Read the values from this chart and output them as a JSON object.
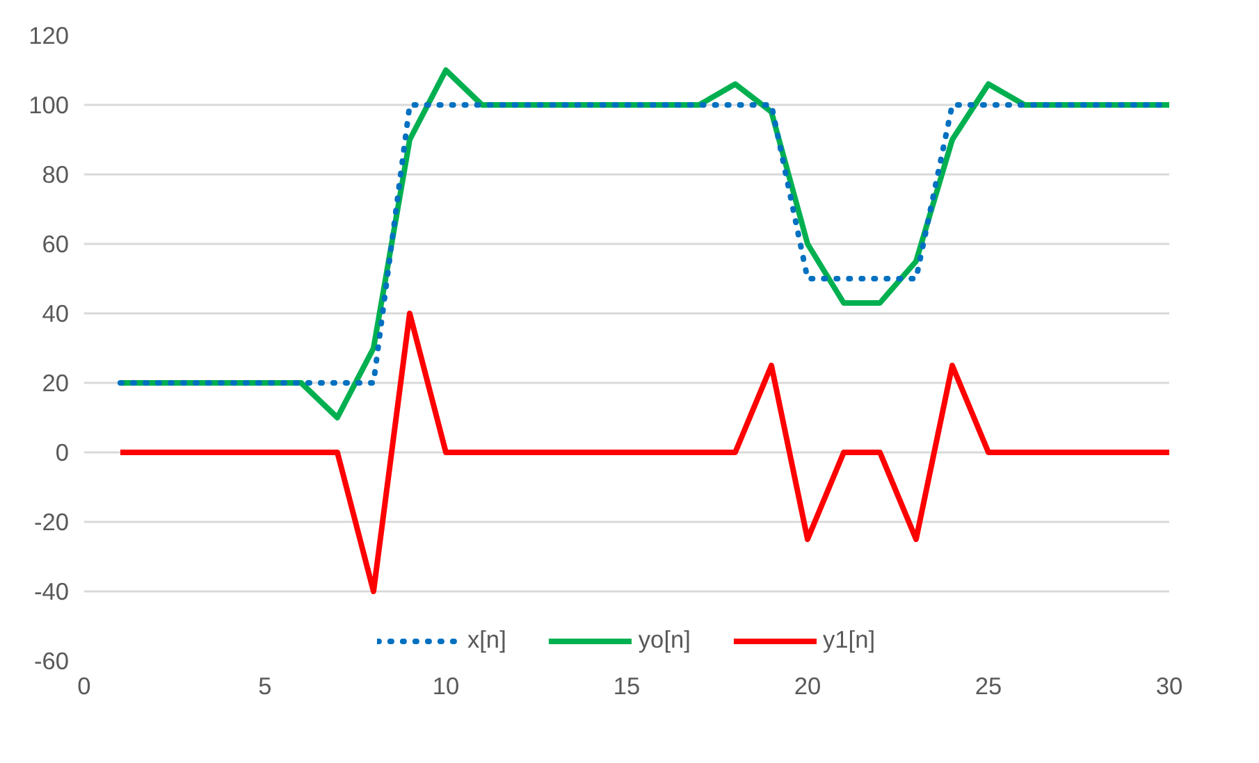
{
  "chart_data": {
    "type": "line",
    "x": [
      1,
      2,
      3,
      4,
      5,
      6,
      7,
      8,
      9,
      10,
      11,
      12,
      13,
      14,
      15,
      16,
      17,
      18,
      19,
      20,
      21,
      22,
      23,
      24,
      25,
      26,
      27,
      28,
      29,
      30
    ],
    "series": [
      {
        "name": "x[n]",
        "color": "#0070c0",
        "line_style": "dotted",
        "values": [
          20,
          20,
          20,
          20,
          20,
          20,
          20,
          20,
          100,
          100,
          100,
          100,
          100,
          100,
          100,
          100,
          100,
          100,
          100,
          50,
          50,
          50,
          50,
          100,
          100,
          100,
          100,
          100,
          100,
          100
        ]
      },
      {
        "name": "yo[n]",
        "color": "#00b050",
        "line_style": "solid",
        "values": [
          20,
          20,
          20,
          20,
          20,
          20,
          10,
          30,
          90,
          110,
          100,
          100,
          100,
          100,
          100,
          100,
          100,
          106,
          98,
          60,
          43,
          43,
          55,
          90,
          106,
          100,
          100,
          100,
          100,
          100
        ]
      },
      {
        "name": "y1[n]",
        "color": "#ff0000",
        "line_style": "solid",
        "values": [
          0,
          0,
          0,
          0,
          0,
          0,
          0,
          -40,
          40,
          0,
          0,
          0,
          0,
          0,
          0,
          0,
          0,
          0,
          25,
          -25,
          0,
          0,
          -25,
          25,
          0,
          0,
          0,
          0,
          0,
          0
        ]
      }
    ],
    "xlim": [
      0,
      30
    ],
    "xticks": [
      0,
      5,
      10,
      15,
      20,
      25,
      30
    ],
    "ylim": [
      -60,
      120
    ],
    "yticks": [
      -60,
      -40,
      -20,
      0,
      20,
      40,
      60,
      80,
      100,
      120
    ],
    "grid": "y",
    "legend": "bottom",
    "marker": "none"
  }
}
